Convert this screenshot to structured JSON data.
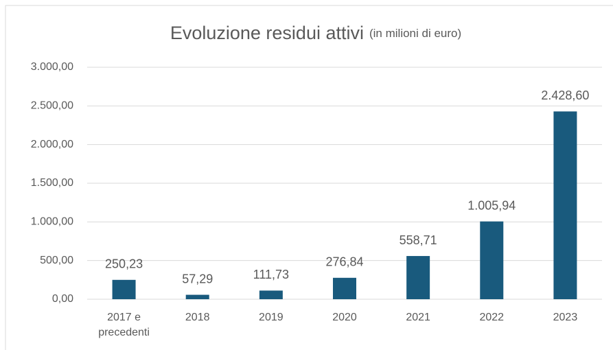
{
  "chart_data": {
    "type": "bar",
    "title": "Evoluzione residui attivi",
    "subtitle": "(in milioni di euro)",
    "categories": [
      "2017 e precedenti",
      "2018",
      "2019",
      "2020",
      "2021",
      "2022",
      "2023"
    ],
    "values": [
      250.23,
      57.29,
      111.73,
      276.84,
      558.71,
      1005.94,
      2428.6
    ],
    "value_labels": [
      "250,23",
      "57,29",
      "111,73",
      "276,84",
      "558,71",
      "1.005,94",
      "2.428,60"
    ],
    "color": "#195a7d",
    "ylim": [
      0,
      3000
    ],
    "yticks": [
      {
        "value": 0,
        "label": "0,00"
      },
      {
        "value": 500,
        "label": "500,00"
      },
      {
        "value": 1000,
        "label": "1.000,00"
      },
      {
        "value": 1500,
        "label": "1.500,00"
      },
      {
        "value": 2000,
        "label": "2.000,00"
      },
      {
        "value": 2500,
        "label": "2.500,00"
      },
      {
        "value": 3000,
        "label": "3.000,00"
      }
    ],
    "grid": true
  }
}
